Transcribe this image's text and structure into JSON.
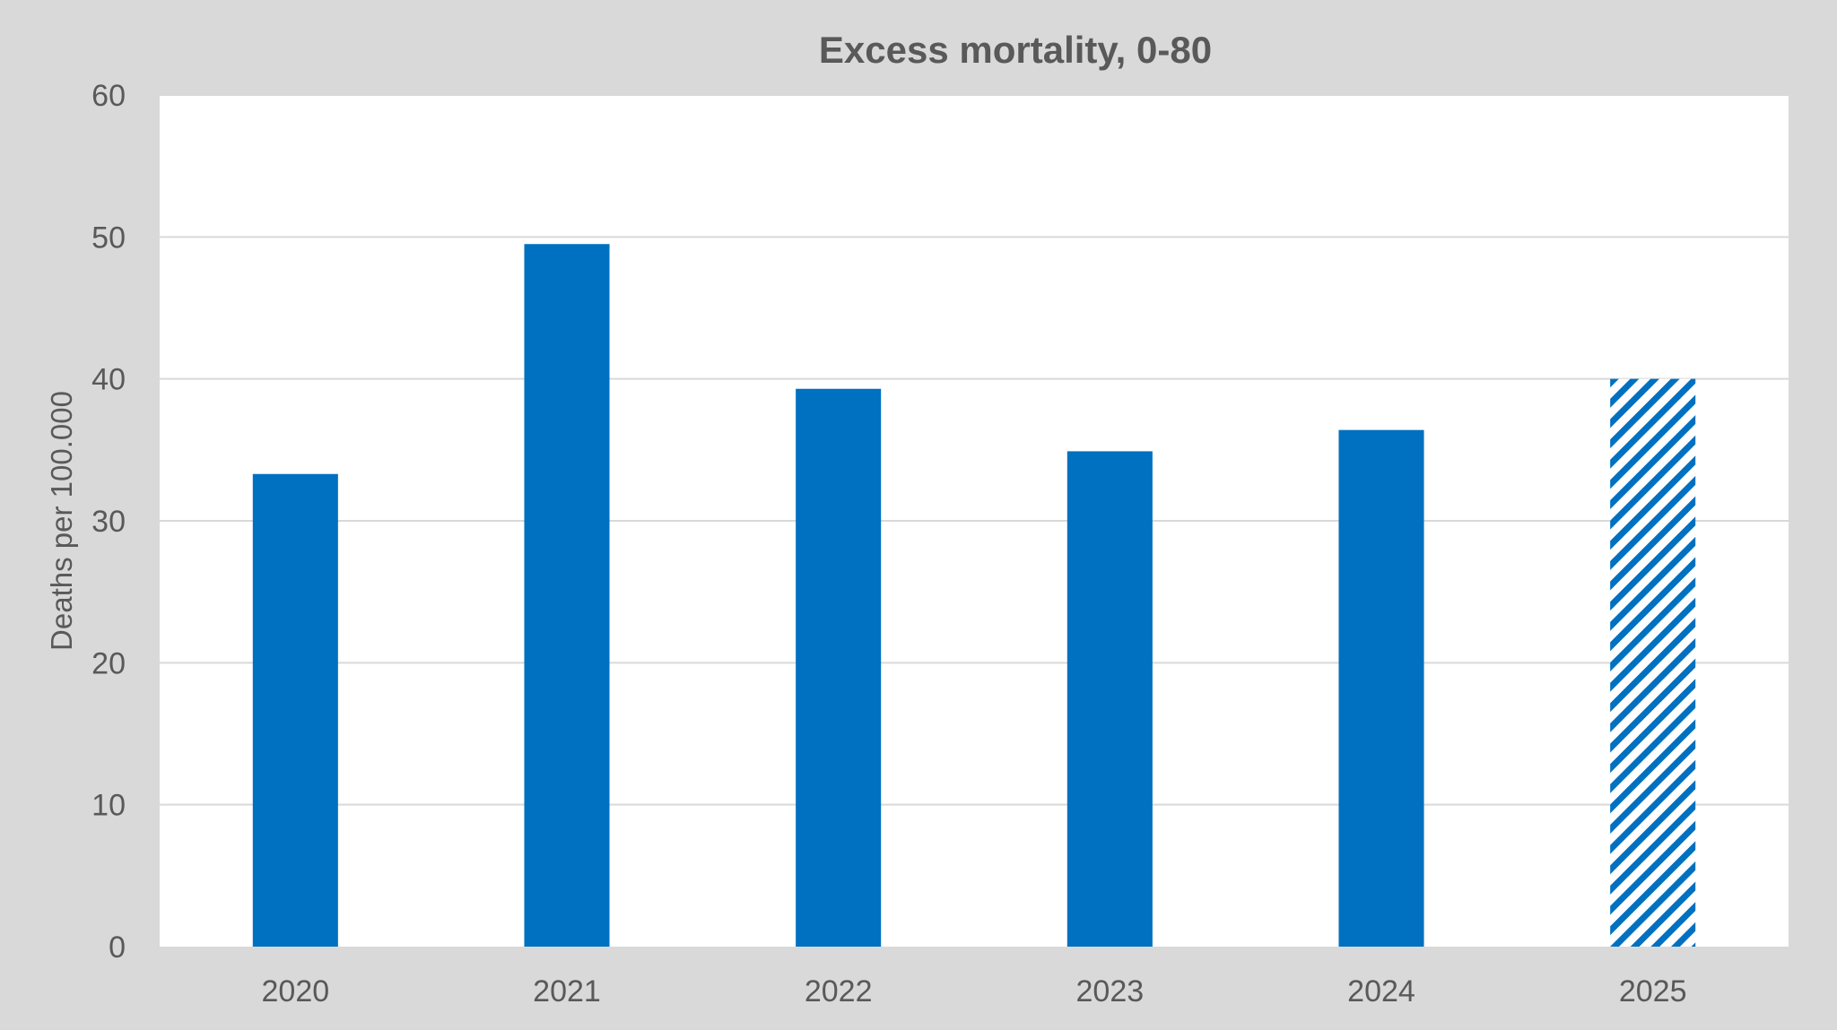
{
  "chart_data": {
    "type": "bar",
    "title": "Excess mortality, 0-80",
    "xlabel": "",
    "ylabel": "Deaths per 100.000",
    "categories": [
      "2020",
      "2021",
      "2022",
      "2023",
      "2024",
      "2025"
    ],
    "values": [
      33.3,
      49.5,
      39.3,
      34.9,
      36.4,
      40.0
    ],
    "bar_style": [
      "solid",
      "solid",
      "solid",
      "solid",
      "solid",
      "hatched"
    ],
    "ylim": [
      0,
      60
    ],
    "yticks": [
      0,
      10,
      20,
      30,
      40,
      50,
      60
    ],
    "grid": true,
    "legend": "none",
    "colors": {
      "bar": "#0070C0",
      "outer_background": "#D9D9D9",
      "plot_background": "#FFFFFF",
      "gridline": "#D9D9D9",
      "text": "#595959"
    }
  }
}
